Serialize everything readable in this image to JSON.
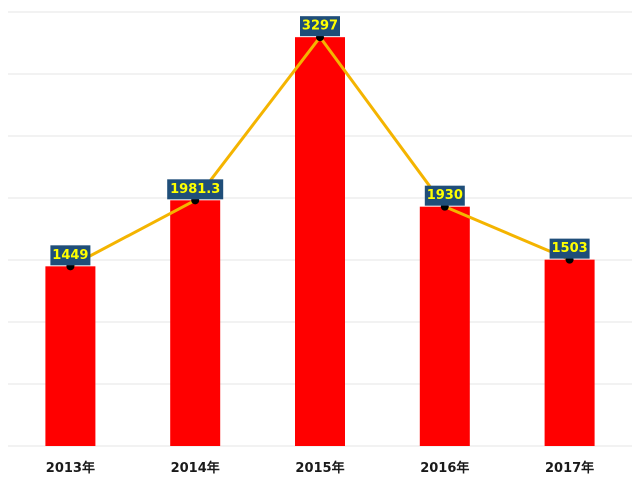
{
  "chart_data": {
    "type": "bar",
    "categories": [
      "2013年",
      "2014年",
      "2015年",
      "2016年",
      "2017年"
    ],
    "values": [
      1449,
      1981.3,
      3297,
      1930,
      1503
    ],
    "value_labels": [
      "1449",
      "1981.3",
      "3297",
      "1930",
      "1503"
    ],
    "overlay_line": true,
    "ylim": [
      0,
      3500
    ],
    "grid": true,
    "title": "",
    "xlabel": "",
    "ylabel": ""
  },
  "colors": {
    "bar": "#ff0000",
    "line": "#f4b400",
    "marker": "#000000",
    "label_bg": "#1f4e79",
    "label_text": "#ffff00",
    "grid": "#e6e6e6"
  }
}
